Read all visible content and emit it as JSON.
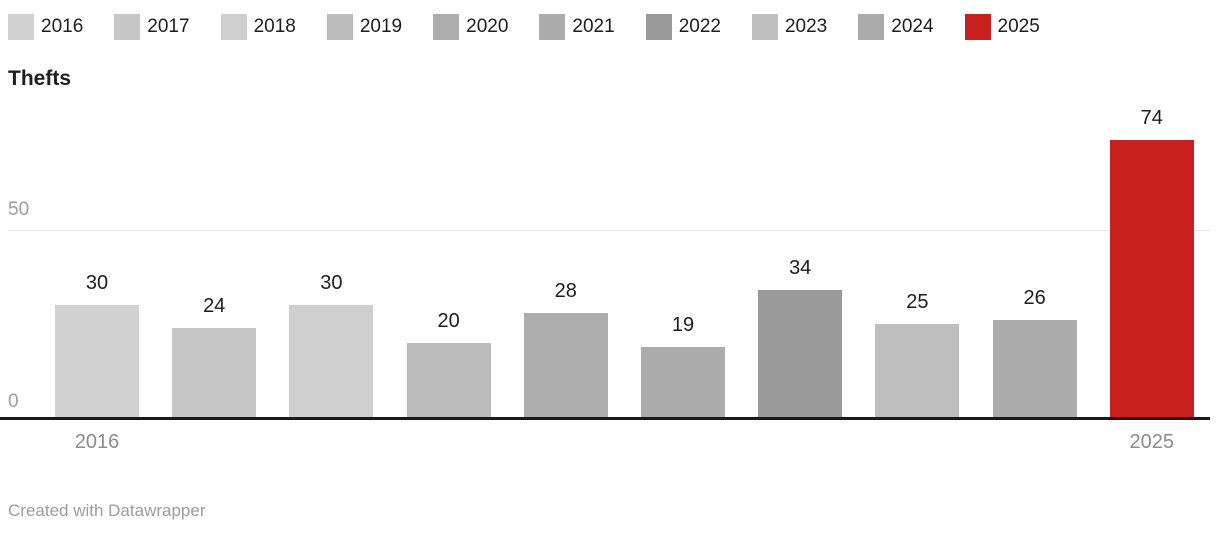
{
  "chart_data": {
    "type": "bar",
    "title": "Thefts",
    "categories": [
      "2016",
      "2017",
      "2018",
      "2019",
      "2020",
      "2021",
      "2022",
      "2023",
      "2024",
      "2025"
    ],
    "values": [
      30,
      24,
      30,
      20,
      28,
      19,
      34,
      25,
      26,
      74
    ],
    "bar_colors": [
      "#d2d2d2",
      "#c6c6c6",
      "#cfcfcf",
      "#bcbcbc",
      "#adadad",
      "#ababab",
      "#9a9a9a",
      "#bfbfbf",
      "#ababab",
      "#c8201e"
    ],
    "highlight_category": "2025",
    "highlight_color": "#c8201e",
    "xlabel": "",
    "ylabel": "",
    "ylim": [
      0,
      79
    ],
    "y_tick_labels": [
      "0",
      "50"
    ],
    "x_axis_labels_shown": [
      "2016",
      "2025"
    ],
    "grid": "single horizontal gridline at 50",
    "legend_position": "top",
    "value_labels_shown": true
  },
  "footer": {
    "attribution": "Created with Datawrapper"
  }
}
